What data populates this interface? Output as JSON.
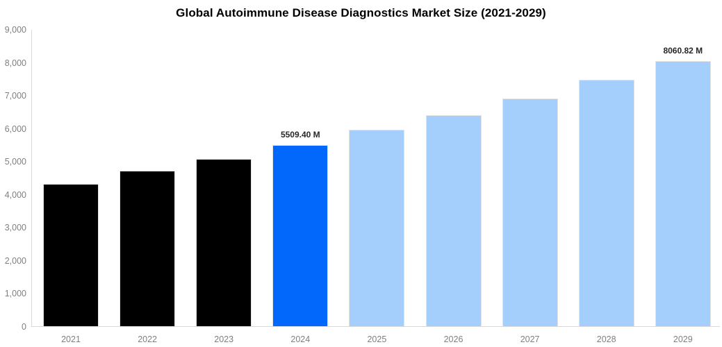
{
  "title": "Global Autoimmune Disease Diagnostics Market Size (2021-2029)",
  "chart_data": {
    "type": "bar",
    "title": "Global Autoimmune Disease Diagnostics Market Size (2021-2029)",
    "categories": [
      "2021",
      "2022",
      "2023",
      "2024",
      "2025",
      "2026",
      "2027",
      "2028",
      "2029"
    ],
    "values": [
      4320,
      4720,
      5090,
      5509.4,
      5960,
      6415,
      6920,
      7490,
      8060.82
    ],
    "value_labels": [
      null,
      null,
      null,
      "5509.40 M",
      null,
      null,
      null,
      null,
      "8060.82 M"
    ],
    "bar_colors": [
      "#000000",
      "#000000",
      "#000000",
      "#0267fb",
      "#a4cefb",
      "#a4cefb",
      "#a4cefb",
      "#a4cefb",
      "#a4cefb"
    ],
    "xlabel": "",
    "ylabel": "",
    "ylim": [
      0,
      9000
    ],
    "y_ticks": [
      "0",
      "1,000",
      "2,000",
      "3,000",
      "4,000",
      "5,000",
      "6,000",
      "7,000",
      "8,000",
      "9,000"
    ],
    "grid": false,
    "legend_position": "none",
    "colors": {
      "historical_bar": "#000000",
      "highlight_bar": "#0267fb",
      "forecast_bar": "#a4cefb",
      "axis_line": "#d9d9d9",
      "tick_label": "#7f7f7f",
      "value_label": "#262626",
      "background": "#ffffff"
    }
  }
}
